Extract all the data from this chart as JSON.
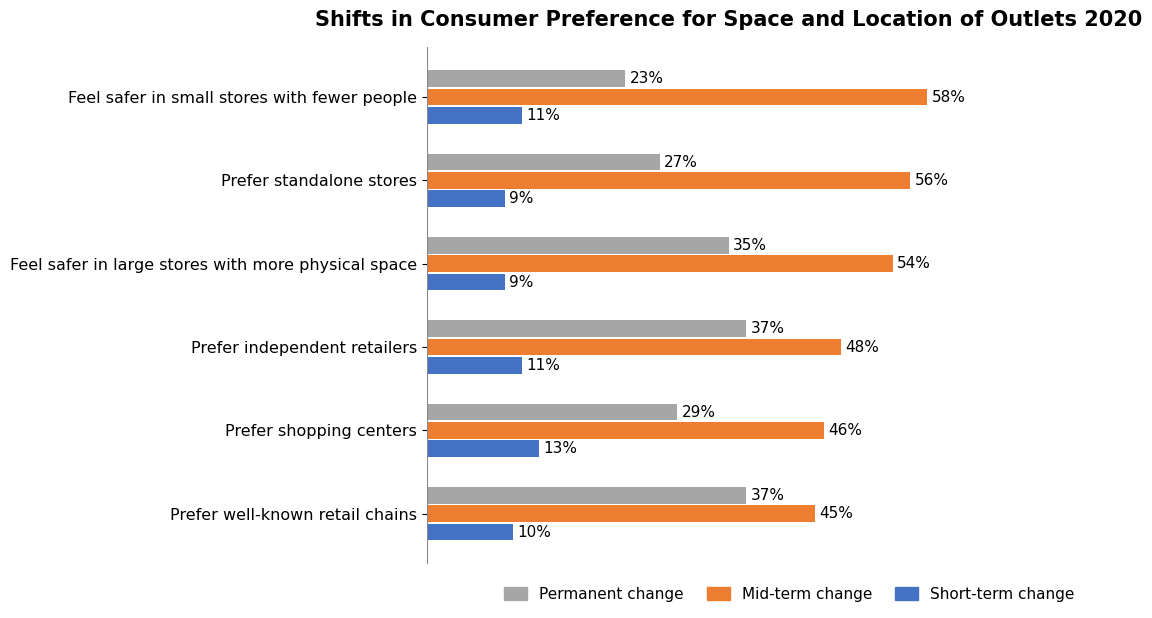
{
  "title": "Shifts in Consumer Preference for Space and Location of Outlets 2020",
  "categories": [
    "Feel safer in small stores with fewer people",
    "Prefer standalone stores",
    "Feel safer in large stores with more physical space",
    "Prefer independent retailers",
    "Prefer shopping centers",
    "Prefer well-known retail chains"
  ],
  "permanent_change": [
    23,
    27,
    35,
    37,
    29,
    37
  ],
  "mid_term_change": [
    58,
    56,
    54,
    48,
    46,
    45
  ],
  "short_term_change": [
    11,
    9,
    9,
    11,
    13,
    10
  ],
  "permanent_color": "#a6a6a6",
  "mid_term_color": "#ed7d31",
  "short_term_color": "#4472c4",
  "background_color": "#ffffff",
  "legend_labels": [
    "Permanent change",
    "Mid-term change",
    "Short-term change"
  ],
  "bar_height": 0.2,
  "title_fontsize": 15,
  "label_fontsize": 11.5,
  "value_fontsize": 11,
  "legend_fontsize": 11
}
